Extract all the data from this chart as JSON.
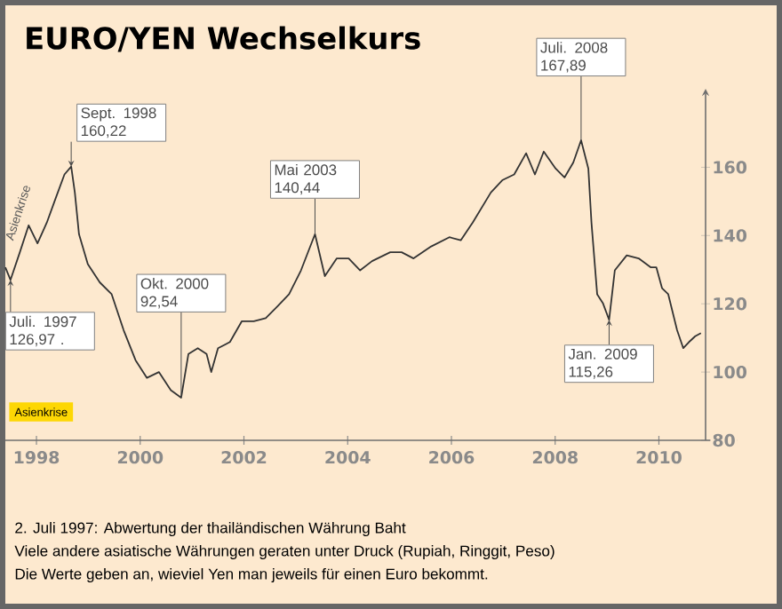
{
  "chart_data": {
    "type": "line",
    "title": "EURO/YEN Wechselkurs",
    "color": "#333333",
    "marker": "none",
    "line_style": "solid",
    "x": [
      1997.4,
      1997.5,
      1997.68,
      1997.85,
      1998.02,
      1998.2,
      1998.37,
      1998.54,
      1998.67,
      1998.74,
      1998.82,
      1998.99,
      1999.22,
      1999.45,
      1999.68,
      1999.91,
      2000.13,
      2000.36,
      2000.59,
      2000.79,
      2000.93,
      2001.11,
      2001.28,
      2001.37,
      2001.5,
      2001.73,
      2001.96,
      2002.19,
      2002.42,
      2002.65,
      2002.87,
      2003.1,
      2003.37,
      2003.56,
      2003.79,
      2004.02,
      2004.24,
      2004.47,
      2004.82,
      2005.04,
      2005.27,
      2005.61,
      2005.96,
      2006.18,
      2006.41,
      2006.76,
      2006.98,
      2007.21,
      2007.44,
      2007.61,
      2007.78,
      2008.01,
      2008.18,
      2008.35,
      2008.5,
      2008.64,
      2008.7,
      2008.81,
      2008.92,
      2009.04,
      2009.15,
      2009.38,
      2009.61,
      2009.84,
      2009.95,
      2010.06,
      2010.18,
      2010.35,
      2010.47,
      2010.58,
      2010.7,
      2010.81
    ],
    "values": [
      130.7,
      127.0,
      135.1,
      143.0,
      137.7,
      143.8,
      150.9,
      157.9,
      160.2,
      152.6,
      140.4,
      131.6,
      126.3,
      122.8,
      112.3,
      103.5,
      98.3,
      100.0,
      94.7,
      92.5,
      105.3,
      107.0,
      105.3,
      100.0,
      107.0,
      108.8,
      114.9,
      114.9,
      115.8,
      119.3,
      122.8,
      129.8,
      140.4,
      128.1,
      133.3,
      133.3,
      129.8,
      132.5,
      135.1,
      135.1,
      133.3,
      136.8,
      139.5,
      138.6,
      143.8,
      152.6,
      156.2,
      157.9,
      164.1,
      157.9,
      164.6,
      159.6,
      157.0,
      161.4,
      167.9,
      159.6,
      143.8,
      122.8,
      120.2,
      115.3,
      129.8,
      134.2,
      133.3,
      130.7,
      130.7,
      124.6,
      122.8,
      112.3,
      107.0,
      108.8,
      110.5,
      111.4
    ],
    "xlim": [
      1997.4,
      2010.9
    ],
    "ylim": [
      80,
      183
    ],
    "xticks": [
      1998,
      2000,
      2002,
      2004,
      2006,
      2008,
      2010
    ],
    "yticks": [
      80,
      100,
      120,
      140,
      160
    ],
    "annotations": [
      {
        "text": "Juli. 1997 126,97 .",
        "x": 1997.5,
        "y": 127.0
      },
      {
        "text": "Sept. 1998 160,22",
        "x": 1998.67,
        "y": 160.2
      },
      {
        "text": "Okt. 2000 92,54",
        "x": 2000.79,
        "y": 92.5
      },
      {
        "text": "Mai 2003 140,44",
        "x": 2003.37,
        "y": 140.4
      },
      {
        "text": "Juli. 2008 167,89",
        "x": 2008.5,
        "y": 167.9
      },
      {
        "text": "Jan. 2009 115,26",
        "x": 2009.04,
        "y": 115.3
      },
      {
        "text": "Asienkrise",
        "x": 1997.85,
        "y": 143.0
      },
      "Asienkrise",
      "2. Juli 1997: Abwertung der thailändischen Währung Baht",
      "Viele andere asiatische Währungen geraten unter Druck (Rupiah, Ringgit, Peso)",
      "Die Werte geben an, wieviel Yen man jeweils für einen Euro bekommt."
    ]
  }
}
